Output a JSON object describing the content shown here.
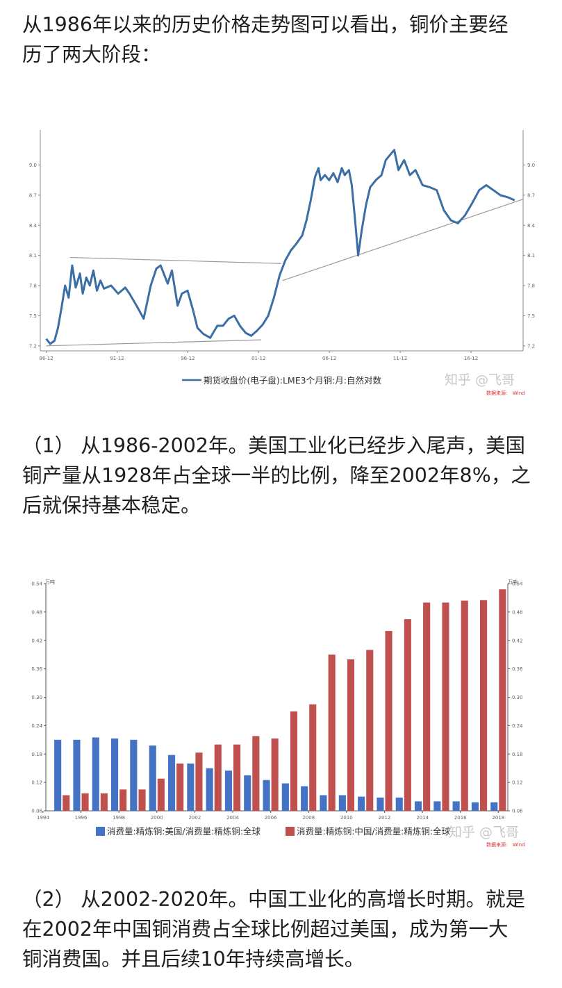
{
  "article": {
    "intro_lines": [
      "从1986年以来的历史价格走势图可以看出，铜价主要经",
      "历了两大阶段："
    ],
    "stage1_lines": [
      "（1） 从1986-2002年。美国工业化已经步入尾声，美国",
      "铜产量从1928年占全球一半的比例，降至2002年8%，之",
      "后就保持基本稳定。"
    ],
    "stage2_lines": [
      "（2） 从2002-2020年。中国工业化的高增长时期。就是",
      "在2002年中国铜消费占全球比例超过美国，成为第一大",
      "铜消费国。并且后续10年持续高增长。"
    ]
  },
  "watermark": {
    "text": "知乎 @飞哥",
    "source_left": "数据来源:",
    "source_right": "Wind"
  },
  "chart_data": [
    {
      "type": "line",
      "legend": "期货收盘价(电子盘):LME3个月铜:月:自然对数",
      "x_tick_labels": [
        "86-12",
        "91-12",
        "96-12",
        "01-12",
        "06-12",
        "11-12",
        "16-12"
      ],
      "x_ticks": [
        1986.92,
        1991.92,
        1996.92,
        2001.92,
        2006.92,
        2011.92,
        2016.92
      ],
      "xlim": [
        1986.5,
        2020.6
      ],
      "y_tick_labels": [
        "7.2",
        "7.5",
        "7.8",
        "8.1",
        "8.4",
        "8.7",
        "9.0"
      ],
      "y_ticks": [
        7.2,
        7.5,
        7.8,
        8.1,
        8.4,
        8.7,
        9.0
      ],
      "ylim": [
        7.15,
        9.35
      ],
      "line_color": "#3a6ea5",
      "series": [
        {
          "x": [
            1986.92,
            1987.2,
            1987.5,
            1987.75,
            1988.0,
            1988.25,
            1988.5,
            1988.75,
            1989.0,
            1989.3,
            1989.5,
            1989.75,
            1990.0,
            1990.25,
            1990.5,
            1990.75,
            1991.0,
            1991.5,
            1992.0,
            1992.5,
            1992.8,
            1993.3,
            1993.8,
            1994.3,
            1994.7,
            1995.0,
            1995.5,
            1995.8,
            1996.2,
            1996.5,
            1996.9,
            1997.3,
            1997.6,
            1998.0,
            1998.5,
            1999.0,
            1999.4,
            1999.8,
            2000.2,
            2000.6,
            2001.0,
            2001.4,
            2001.8,
            2002.2,
            2002.6,
            2003.0,
            2003.4,
            2003.8,
            2004.2,
            2004.6,
            2005.0,
            2005.3,
            2005.6,
            2005.9,
            2006.15,
            2006.3,
            2006.6,
            2006.9,
            2007.2,
            2007.5,
            2007.8,
            2008.0,
            2008.3,
            2008.5,
            2008.7,
            2008.95,
            2009.2,
            2009.5,
            2009.8,
            2010.2,
            2010.6,
            2010.9,
            2011.2,
            2011.5,
            2011.8,
            2012.2,
            2012.6,
            2013.0,
            2013.5,
            2014.0,
            2014.5,
            2015.0,
            2015.5,
            2016.0,
            2016.5,
            2017.0,
            2017.5,
            2018.0,
            2018.5,
            2019.0,
            2019.5,
            2020.0
          ],
          "y": [
            7.27,
            7.22,
            7.25,
            7.38,
            7.58,
            7.8,
            7.68,
            8.0,
            7.78,
            7.92,
            7.72,
            7.88,
            7.8,
            7.95,
            7.75,
            7.85,
            7.77,
            7.8,
            7.72,
            7.78,
            7.72,
            7.6,
            7.47,
            7.8,
            7.97,
            8.0,
            7.82,
            7.95,
            7.6,
            7.72,
            7.75,
            7.55,
            7.38,
            7.32,
            7.28,
            7.4,
            7.4,
            7.47,
            7.5,
            7.4,
            7.33,
            7.3,
            7.35,
            7.41,
            7.5,
            7.68,
            7.9,
            8.05,
            8.15,
            8.22,
            8.3,
            8.45,
            8.65,
            8.88,
            8.97,
            8.85,
            8.9,
            8.85,
            8.92,
            8.83,
            8.97,
            8.9,
            8.95,
            8.8,
            8.5,
            8.1,
            8.35,
            8.6,
            8.78,
            8.85,
            8.9,
            9.05,
            9.1,
            9.15,
            8.95,
            9.05,
            8.9,
            8.95,
            8.8,
            8.78,
            8.75,
            8.55,
            8.45,
            8.42,
            8.5,
            8.62,
            8.75,
            8.8,
            8.75,
            8.7,
            8.68,
            8.65
          ]
        }
      ],
      "trendlines": [
        {
          "x": [
            1986.92,
            2002.1
          ],
          "y": [
            7.2,
            7.26
          ]
        },
        {
          "x": [
            1988.6,
            2003.5
          ],
          "y": [
            8.08,
            8.02
          ]
        },
        {
          "x": [
            2003.6,
            2020.6
          ],
          "y": [
            7.85,
            8.66
          ]
        }
      ]
    },
    {
      "type": "bar",
      "categories": [
        "1995",
        "1996",
        "1997",
        "1998",
        "1999",
        "2000",
        "2001",
        "2002",
        "2003",
        "2004",
        "2005",
        "2006",
        "2007",
        "2008",
        "2009",
        "2010",
        "2011",
        "2012",
        "2013",
        "2014",
        "2015",
        "2016",
        "2017",
        "2018"
      ],
      "x_tick_labels": [
        "1994",
        "1996",
        "1998",
        "2000",
        "2002",
        "2004",
        "2006",
        "2008",
        "2010",
        "2012",
        "2014",
        "2016",
        "2018"
      ],
      "y_tick_labels": [
        "0.06",
        "0.12",
        "0.18",
        "0.24",
        "0.30",
        "0.36",
        "0.42",
        "0.48",
        "0.54"
      ],
      "y_ticks": [
        0.06,
        0.12,
        0.18,
        0.24,
        0.3,
        0.36,
        0.42,
        0.48,
        0.54
      ],
      "ylim": [
        0.06,
        0.54
      ],
      "y_unit_left": "万吨",
      "y_unit_right": "万吨",
      "series": [
        {
          "name": "消费量:精炼铜:美国/消费量:精炼铜:全球",
          "color": "#4472c4",
          "values": [
            0.21,
            0.21,
            0.215,
            0.213,
            0.21,
            0.198,
            0.178,
            0.16,
            0.15,
            0.145,
            0.135,
            0.125,
            0.118,
            0.112,
            0.093,
            0.093,
            0.09,
            0.088,
            0.088,
            0.08,
            0.08,
            0.08,
            0.078,
            0.078
          ]
        },
        {
          "name": "消费量:精炼铜:中国/消费量:精炼铜:全球",
          "color": "#c0504d",
          "values": [
            0.093,
            0.097,
            0.097,
            0.105,
            0.105,
            0.128,
            0.16,
            0.183,
            0.2,
            0.2,
            0.218,
            0.213,
            0.27,
            0.285,
            0.39,
            0.38,
            0.4,
            0.44,
            0.465,
            0.5,
            0.5,
            0.504,
            0.505,
            0.528
          ]
        }
      ]
    }
  ]
}
